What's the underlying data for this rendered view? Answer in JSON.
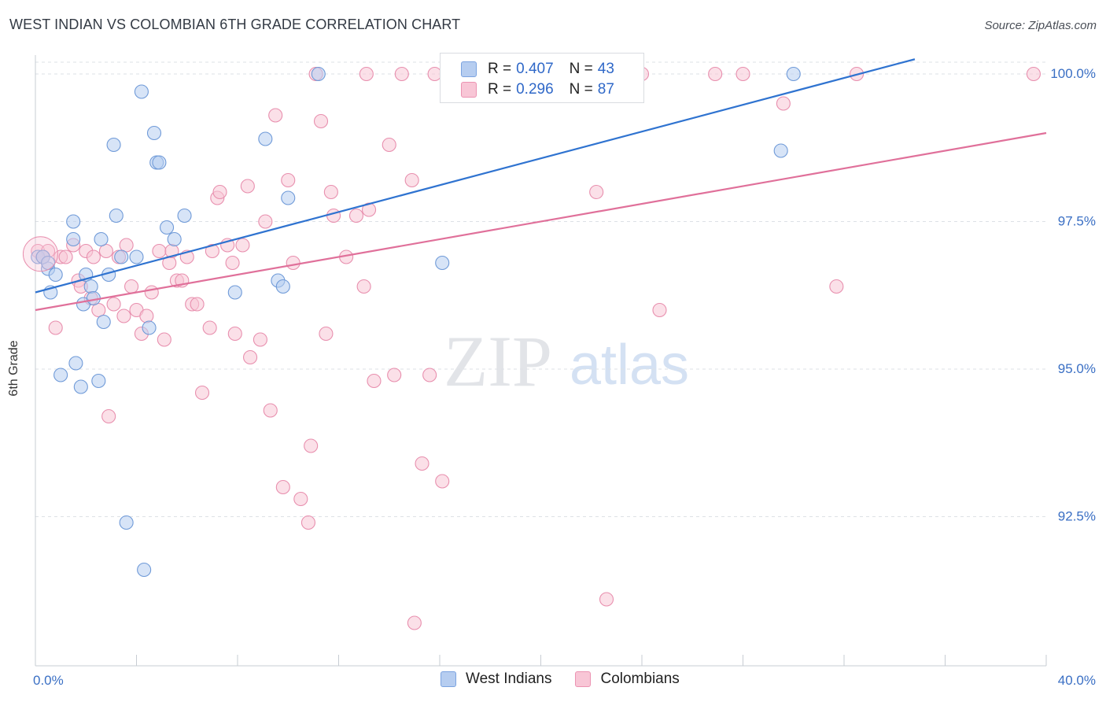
{
  "title": "WEST INDIAN VS COLOMBIAN 6TH GRADE CORRELATION CHART",
  "source": "Source: ZipAtlas.com",
  "watermark": {
    "zip": "ZIP",
    "atlas": "atlas"
  },
  "legend": {
    "r_label": "R =",
    "n_label": "N =",
    "rows": [
      {
        "r": "0.407",
        "n": "43"
      },
      {
        "r": "0.296",
        "n": "87"
      }
    ]
  },
  "colors": {
    "west_indians_fill": "#b6cdf0",
    "west_indians_stroke": "#6f9ad8",
    "west_indians_line": "#2f73d0",
    "colombians_fill": "#f8c6d6",
    "colombians_stroke": "#e88fae",
    "colombians_line": "#e0709a",
    "tick_label": "#3a6fc4",
    "grid": "#dde1e6"
  },
  "chart_data": {
    "type": "scatter",
    "title": "WEST INDIAN VS COLOMBIAN 6TH GRADE CORRELATION CHART",
    "xlabel": "",
    "ylabel": "6th Grade",
    "xlim": [
      0,
      40
    ],
    "ylim": [
      90,
      100.2
    ],
    "x_tick_labels": [
      {
        "value": 0,
        "label": "0.0%"
      },
      {
        "value": 40,
        "label": "40.0%"
      }
    ],
    "y_tick_labels": [
      {
        "value": 92.5,
        "label": "92.5%"
      },
      {
        "value": 95.0,
        "label": "95.0%"
      },
      {
        "value": 97.5,
        "label": "97.5%"
      },
      {
        "value": 100.0,
        "label": "100.0%"
      }
    ],
    "series": [
      {
        "name": "West Indians",
        "color": "#2f73d0",
        "r": 0.407,
        "n": 43,
        "trend": [
          [
            0,
            96.3
          ],
          [
            34.8,
            100.25
          ]
        ],
        "points": [
          [
            0.1,
            96.9
          ],
          [
            0.3,
            96.9
          ],
          [
            0.5,
            96.7
          ],
          [
            0.6,
            96.3
          ],
          [
            0.8,
            96.6
          ],
          [
            1.0,
            94.9
          ],
          [
            1.5,
            97.5
          ],
          [
            1.5,
            97.2
          ],
          [
            1.6,
            95.1
          ],
          [
            1.8,
            94.7
          ],
          [
            1.9,
            96.1
          ],
          [
            2.0,
            96.6
          ],
          [
            2.2,
            96.4
          ],
          [
            2.3,
            96.2
          ],
          [
            2.5,
            94.8
          ],
          [
            2.6,
            97.2
          ],
          [
            2.7,
            95.8
          ],
          [
            2.9,
            96.6
          ],
          [
            3.1,
            98.8
          ],
          [
            3.2,
            97.6
          ],
          [
            3.4,
            96.9
          ],
          [
            3.6,
            92.4
          ],
          [
            4.0,
            96.9
          ],
          [
            4.2,
            99.7
          ],
          [
            4.3,
            91.6
          ],
          [
            4.5,
            95.7
          ],
          [
            4.7,
            99.0
          ],
          [
            4.8,
            98.5
          ],
          [
            4.9,
            98.5
          ],
          [
            5.2,
            97.4
          ],
          [
            5.5,
            97.2
          ],
          [
            5.9,
            97.6
          ],
          [
            7.9,
            96.3
          ],
          [
            9.1,
            98.9
          ],
          [
            9.6,
            96.5
          ],
          [
            9.8,
            96.4
          ],
          [
            10.0,
            97.9
          ],
          [
            11.2,
            100.0
          ],
          [
            16.1,
            96.8
          ],
          [
            29.5,
            98.7
          ],
          [
            30.0,
            100.0
          ],
          [
            0.3,
            96.9
          ],
          [
            0.5,
            96.8
          ]
        ]
      },
      {
        "name": "Colombians",
        "color": "#e0709a",
        "r": 0.296,
        "n": 87,
        "trend": [
          [
            0,
            96.0
          ],
          [
            40,
            99.0
          ]
        ],
        "points": [
          [
            0.1,
            97.0
          ],
          [
            0.3,
            96.9
          ],
          [
            0.5,
            97.0
          ],
          [
            0.8,
            95.7
          ],
          [
            1.0,
            96.9
          ],
          [
            1.2,
            96.9
          ],
          [
            1.5,
            97.1
          ],
          [
            1.7,
            96.5
          ],
          [
            1.8,
            96.4
          ],
          [
            2.0,
            97.0
          ],
          [
            2.2,
            96.2
          ],
          [
            2.3,
            96.9
          ],
          [
            2.5,
            96.0
          ],
          [
            2.8,
            97.0
          ],
          [
            2.9,
            94.2
          ],
          [
            3.1,
            96.1
          ],
          [
            3.3,
            96.9
          ],
          [
            3.5,
            95.9
          ],
          [
            3.6,
            97.1
          ],
          [
            3.8,
            96.4
          ],
          [
            4.0,
            96.0
          ],
          [
            4.2,
            95.6
          ],
          [
            4.4,
            95.9
          ],
          [
            4.6,
            96.3
          ],
          [
            4.9,
            97.0
          ],
          [
            5.1,
            95.5
          ],
          [
            5.3,
            96.8
          ],
          [
            5.4,
            97.0
          ],
          [
            5.6,
            96.5
          ],
          [
            5.8,
            96.5
          ],
          [
            6.0,
            96.9
          ],
          [
            6.2,
            96.1
          ],
          [
            6.4,
            96.1
          ],
          [
            6.6,
            94.6
          ],
          [
            6.9,
            95.7
          ],
          [
            7.0,
            97.0
          ],
          [
            7.2,
            97.9
          ],
          [
            7.3,
            98.0
          ],
          [
            7.6,
            97.1
          ],
          [
            7.8,
            96.8
          ],
          [
            7.9,
            95.6
          ],
          [
            8.2,
            97.1
          ],
          [
            8.4,
            98.1
          ],
          [
            8.5,
            95.2
          ],
          [
            8.9,
            95.5
          ],
          [
            9.1,
            97.5
          ],
          [
            9.3,
            94.3
          ],
          [
            9.5,
            99.3
          ],
          [
            9.8,
            93.0
          ],
          [
            10.0,
            98.2
          ],
          [
            10.2,
            96.8
          ],
          [
            10.5,
            92.8
          ],
          [
            10.8,
            92.4
          ],
          [
            10.9,
            93.7
          ],
          [
            11.1,
            100.0
          ],
          [
            11.3,
            99.2
          ],
          [
            11.5,
            95.6
          ],
          [
            11.7,
            98.0
          ],
          [
            11.8,
            97.6
          ],
          [
            12.3,
            96.9
          ],
          [
            12.7,
            97.6
          ],
          [
            13.0,
            96.4
          ],
          [
            13.2,
            97.7
          ],
          [
            13.4,
            94.8
          ],
          [
            13.1,
            100.0
          ],
          [
            14.0,
            98.8
          ],
          [
            14.2,
            94.9
          ],
          [
            14.5,
            100.0
          ],
          [
            14.9,
            98.2
          ],
          [
            15.3,
            93.4
          ],
          [
            15.6,
            94.9
          ],
          [
            15.8,
            100.0
          ],
          [
            16.1,
            93.1
          ],
          [
            17.5,
            100.0
          ],
          [
            19.3,
            100.0
          ],
          [
            19.6,
            100.0
          ],
          [
            22.2,
            98.0
          ],
          [
            22.6,
            91.1
          ],
          [
            24.0,
            100.0
          ],
          [
            24.7,
            96.0
          ],
          [
            26.9,
            100.0
          ],
          [
            28.0,
            100.0
          ],
          [
            29.6,
            99.5
          ],
          [
            31.7,
            96.4
          ],
          [
            32.5,
            100.0
          ],
          [
            39.5,
            100.0
          ],
          [
            15.0,
            90.7
          ]
        ]
      }
    ]
  },
  "bottom_legend": [
    {
      "label": "West Indians"
    },
    {
      "label": "Colombians"
    }
  ]
}
